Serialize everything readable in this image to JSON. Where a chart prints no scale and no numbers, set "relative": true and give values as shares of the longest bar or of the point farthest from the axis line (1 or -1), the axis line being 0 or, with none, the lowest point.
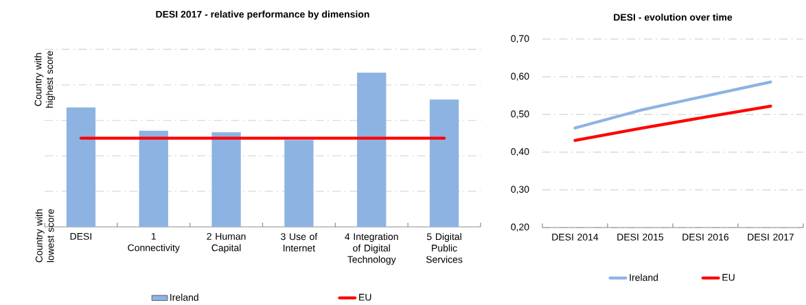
{
  "chart_data": [
    {
      "type": "bar",
      "title": "DESI 2017 -  relative performance by dimension",
      "relative": true,
      "grid": "y",
      "legend": "bottom",
      "annotations": [
        "Country with highest score",
        "Country with lowest score"
      ],
      "categories": [
        "DESI",
        "1 Connectivity",
        "2 Human Capital",
        "3 Use of Internet",
        "4 Integration of Digital Technology",
        "5 Digital Public Services"
      ],
      "series": [
        {
          "name": "Ireland",
          "color": "#8db3e2",
          "values": [
            0.774,
            0.623,
            0.613,
            0.563,
            1,
            0.825
          ]
        },
        {
          "name": "EU",
          "type": "line",
          "color": "#ff0000",
          "values": [
            0.575,
            0.575,
            0.575,
            0.575,
            0.575,
            0.575
          ]
        }
      ]
    },
    {
      "type": "line",
      "title": "DESI - evolution over time",
      "grid": "y",
      "legend": "bottom",
      "categories": [
        "DESI 2014",
        "DESI 2015",
        "DESI 2016",
        "DESI 2017"
      ],
      "ylim": [
        0.2,
        0.7
      ],
      "yticks": [
        {
          "value": 0.2,
          "label": "0,20"
        },
        {
          "value": 0.3,
          "label": "0,30"
        },
        {
          "value": 0.4,
          "label": "0,40"
        },
        {
          "value": 0.5,
          "label": "0,50"
        },
        {
          "value": 0.6,
          "label": "0,60"
        },
        {
          "value": 0.7,
          "label": "0,70"
        }
      ],
      "series": [
        {
          "name": "Ireland",
          "color": "#8db3e2",
          "values": [
            0.464,
            0.511,
            0.549,
            0.586
          ]
        },
        {
          "name": "EU",
          "color": "#ff0000",
          "values": [
            0.431,
            0.463,
            0.493,
            0.522
          ]
        }
      ]
    }
  ]
}
